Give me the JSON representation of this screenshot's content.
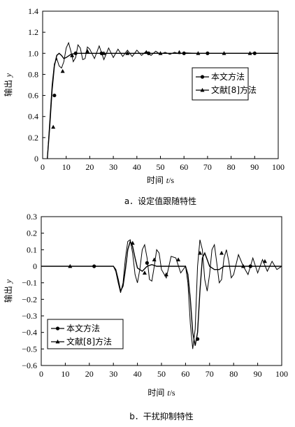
{
  "chart_data": [
    {
      "type": "line",
      "caption": "a．设定值跟随特性",
      "xlabel_main": "时间",
      "xlabel_var": "t",
      "xlabel_unit": "/s",
      "ylabel_main": "输出",
      "ylabel_var": "y",
      "xlim": [
        0,
        100
      ],
      "ylim": [
        0,
        1.4
      ],
      "xticks": [
        "0",
        "10",
        "20",
        "30",
        "40",
        "50",
        "60",
        "70",
        "80",
        "90",
        "100"
      ],
      "yticks": [
        "0",
        "0.2",
        "0.4",
        "0.6",
        "0.8",
        "1.0",
        "1.2",
        "1.4"
      ],
      "legend_position": "right-middle",
      "series": [
        {
          "name": "本文方法",
          "marker": "circle",
          "x": [
            2,
            3,
            4,
            5,
            6,
            7,
            8,
            9,
            10,
            12,
            14,
            16,
            20,
            25,
            30,
            40,
            50,
            60,
            70,
            80,
            90,
            100
          ],
          "y": [
            0,
            0.3,
            0.65,
            0.88,
            0.98,
            1.0,
            0.98,
            0.95,
            0.96,
            0.99,
            1.0,
            1.0,
            1.0,
            1.0,
            1.0,
            1.0,
            1.0,
            1.0,
            1.0,
            1.0,
            1.0,
            1.0
          ],
          "markers_x": [
            5,
            14,
            25,
            45,
            60,
            70,
            90
          ],
          "markers_y": [
            0.6,
            1.0,
            1.0,
            1.0,
            1.0,
            1.0,
            1.0
          ]
        },
        {
          "name": "文献[8]方法",
          "marker": "triangle",
          "x": [
            2,
            3,
            4,
            5,
            6,
            7,
            8,
            9,
            10,
            11,
            12,
            13,
            14,
            15,
            16,
            17,
            18,
            19,
            20,
            22,
            24,
            26,
            28,
            30,
            32,
            34,
            36,
            38,
            40,
            42,
            44,
            46,
            48,
            50,
            52,
            54,
            56,
            58,
            60,
            65,
            70,
            80,
            90,
            100
          ],
          "y": [
            0,
            0.35,
            0.7,
            0.9,
            0.95,
            0.88,
            0.86,
            0.92,
            1.05,
            1.1,
            1.02,
            0.92,
            0.96,
            1.08,
            1.05,
            0.94,
            0.95,
            1.06,
            1.04,
            0.95,
            1.07,
            0.94,
            1.05,
            0.96,
            1.04,
            0.97,
            1.03,
            0.97,
            1.03,
            0.98,
            1.02,
            0.98,
            1.02,
            0.99,
            1.01,
            0.99,
            1.01,
            0.995,
            1.005,
            1.0,
            1.0,
            1.0,
            1.0,
            1.0
          ],
          "markers_x": [
            4.5,
            8.5,
            12.5,
            19,
            26,
            36,
            44,
            50,
            58,
            66,
            77,
            88
          ],
          "markers_y": [
            0.3,
            0.83,
            0.98,
            1.02,
            1.0,
            1.0,
            1.01,
            1.0,
            1.01,
            1.0,
            1.0,
            1.0
          ]
        }
      ]
    },
    {
      "type": "line",
      "caption": "b．干扰抑制特性",
      "xlabel_main": "时间",
      "xlabel_var": "t",
      "xlabel_unit": "/s",
      "ylabel_main": "输出",
      "ylabel_var": "y",
      "xlim": [
        0,
        100
      ],
      "ylim": [
        -0.6,
        0.3
      ],
      "xticks": [
        "0",
        "10",
        "20",
        "30",
        "40",
        "50",
        "60",
        "70",
        "80",
        "90",
        "100"
      ],
      "yticks": [
        "0.3",
        "0.2",
        "0.1",
        "0",
        "−0.1",
        "−0.2",
        "−0.3",
        "−0.4",
        "−0.5",
        "−0.6"
      ],
      "legend_position": "bottom-left",
      "series": [
        {
          "name": "本文方法",
          "marker": "circle",
          "x": [
            0,
            30,
            31,
            32,
            33,
            34,
            35,
            36,
            37,
            38,
            39,
            40,
            42,
            44,
            46,
            48,
            50,
            55,
            60,
            61,
            62,
            63,
            64,
            65,
            66,
            67,
            68,
            69,
            70,
            72,
            74,
            76,
            78,
            80,
            85,
            90,
            100
          ],
          "y": [
            0,
            0,
            -0.02,
            -0.08,
            -0.15,
            -0.12,
            -0.02,
            0.1,
            0.15,
            0.12,
            0.05,
            -0.01,
            -0.03,
            0.0,
            0.01,
            0.0,
            0.0,
            0.0,
            0.0,
            -0.05,
            -0.2,
            -0.4,
            -0.48,
            -0.4,
            -0.15,
            0.05,
            0.08,
            0.04,
            0.0,
            -0.02,
            -0.02,
            0.0,
            0.0,
            0.0,
            0.0,
            0.0,
            0.0
          ],
          "markers_x": [
            22,
            44,
            65,
            87
          ],
          "markers_y": [
            0,
            0.02,
            -0.44,
            0.0
          ]
        },
        {
          "name": "文献[8]方法",
          "marker": "triangle",
          "x": [
            0,
            30,
            31,
            32,
            33,
            34,
            35,
            36,
            37,
            38,
            39,
            40,
            41,
            42,
            43,
            44,
            45,
            46,
            47,
            48,
            49,
            50,
            52,
            54,
            56,
            58,
            60,
            61,
            62,
            63,
            64,
            65,
            66,
            67,
            68,
            69,
            70,
            71,
            72,
            73,
            74,
            75,
            76,
            77,
            78,
            79,
            80,
            82,
            84,
            86,
            88,
            90,
            92,
            94,
            96,
            98,
            100
          ],
          "y": [
            0,
            0,
            -0.03,
            -0.1,
            -0.16,
            -0.1,
            0.05,
            0.15,
            0.16,
            0.08,
            -0.05,
            -0.1,
            -0.02,
            0.1,
            0.13,
            0.05,
            -0.08,
            -0.09,
            0.0,
            0.1,
            0.08,
            -0.02,
            -0.07,
            0.06,
            0.05,
            -0.04,
            0.0,
            -0.1,
            -0.35,
            -0.5,
            -0.38,
            0.0,
            0.16,
            0.1,
            -0.08,
            -0.15,
            -0.05,
            0.1,
            0.13,
            0.02,
            -0.1,
            -0.08,
            0.05,
            0.1,
            0.03,
            -0.07,
            -0.05,
            0.07,
            0.0,
            -0.05,
            0.05,
            -0.04,
            0.04,
            -0.03,
            0.03,
            -0.02,
            0.0
          ],
          "markers_x": [
            12,
            38,
            43,
            47,
            52,
            57,
            66,
            75,
            84,
            93
          ],
          "markers_y": [
            0.0,
            0.14,
            -0.04,
            0.04,
            -0.05,
            0.04,
            0.08,
            0.08,
            0.0,
            0.03
          ]
        }
      ]
    }
  ]
}
